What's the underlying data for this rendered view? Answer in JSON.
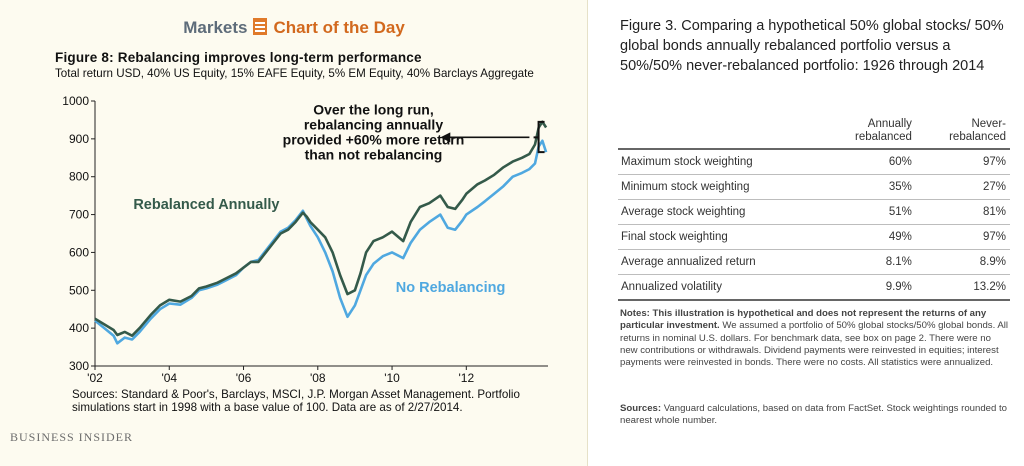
{
  "header": {
    "markets": "Markets",
    "chart_of_the_day": "Chart of the Day"
  },
  "colors": {
    "rebalanced": "#345a4a",
    "no_rebalancing": "#4fa8e0",
    "markets": "#5e6c7a",
    "accent": "#d2691e"
  },
  "chart_data": {
    "type": "line",
    "title": "Figure 8: Rebalancing improves long-term performance",
    "subtitle": "Total return USD, 40% US Equity, 15% EAFE Equity, 5% EM Equity, 40% Barclays Aggregate",
    "xlabel": "",
    "ylabel": "",
    "ylim": [
      300,
      1000
    ],
    "xlim": [
      2002.0,
      2014.2
    ],
    "yticks": [
      300,
      400,
      500,
      600,
      700,
      800,
      900,
      1000
    ],
    "xticks": [
      {
        "value": 2002,
        "label": "'02"
      },
      {
        "value": 2004,
        "label": "'04"
      },
      {
        "value": 2006,
        "label": "'06"
      },
      {
        "value": 2008,
        "label": "'08"
      },
      {
        "value": 2010,
        "label": "'10"
      },
      {
        "value": 2012,
        "label": "'12"
      }
    ],
    "grid": false,
    "legend": "inline labels",
    "series": [
      {
        "name": "Rebalanced Annually",
        "x": [
          2002.0,
          2002.25,
          2002.5,
          2002.6,
          2002.8,
          2003.0,
          2003.2,
          2003.5,
          2003.75,
          2004.0,
          2004.3,
          2004.6,
          2004.8,
          2005.0,
          2005.3,
          2005.5,
          2005.8,
          2006.0,
          2006.2,
          2006.4,
          2006.6,
          2006.8,
          2007.0,
          2007.2,
          2007.4,
          2007.6,
          2007.7,
          2007.8,
          2008.0,
          2008.2,
          2008.4,
          2008.6,
          2008.8,
          2009.0,
          2009.15,
          2009.3,
          2009.5,
          2009.75,
          2010.0,
          2010.3,
          2010.5,
          2010.75,
          2011.0,
          2011.3,
          2011.5,
          2011.7,
          2011.9,
          2012.0,
          2012.3,
          2012.5,
          2012.75,
          2013.0,
          2013.25,
          2013.5,
          2013.7,
          2013.85,
          2013.95,
          2014.05,
          2014.15
        ],
        "values": [
          425,
          410,
          395,
          382,
          390,
          380,
          400,
          435,
          460,
          475,
          470,
          485,
          505,
          510,
          520,
          530,
          545,
          560,
          575,
          575,
          600,
          625,
          650,
          660,
          680,
          705,
          695,
          680,
          660,
          640,
          600,
          540,
          490,
          500,
          545,
          600,
          630,
          640,
          655,
          630,
          680,
          720,
          730,
          750,
          720,
          715,
          740,
          755,
          780,
          790,
          805,
          825,
          840,
          850,
          860,
          885,
          930,
          945,
          930
        ]
      },
      {
        "name": "No Rebalancing",
        "x": [
          2002.0,
          2002.25,
          2002.5,
          2002.6,
          2002.8,
          2003.0,
          2003.2,
          2003.5,
          2003.75,
          2004.0,
          2004.3,
          2004.6,
          2004.8,
          2005.0,
          2005.3,
          2005.5,
          2005.8,
          2006.0,
          2006.2,
          2006.4,
          2006.6,
          2006.8,
          2007.0,
          2007.2,
          2007.4,
          2007.6,
          2007.7,
          2007.8,
          2008.0,
          2008.2,
          2008.4,
          2008.6,
          2008.8,
          2009.0,
          2009.15,
          2009.3,
          2009.5,
          2009.75,
          2010.0,
          2010.3,
          2010.5,
          2010.75,
          2011.0,
          2011.3,
          2011.5,
          2011.7,
          2011.9,
          2012.0,
          2012.3,
          2012.5,
          2012.75,
          2013.0,
          2013.25,
          2013.5,
          2013.7,
          2013.85,
          2013.95,
          2014.05,
          2014.15
        ],
        "values": [
          420,
          400,
          380,
          360,
          375,
          370,
          390,
          425,
          450,
          465,
          462,
          480,
          500,
          505,
          515,
          525,
          540,
          560,
          575,
          580,
          605,
          630,
          655,
          665,
          685,
          710,
          690,
          670,
          640,
          600,
          550,
          480,
          430,
          460,
          500,
          540,
          570,
          590,
          600,
          585,
          625,
          660,
          680,
          700,
          665,
          660,
          685,
          700,
          720,
          735,
          755,
          775,
          800,
          810,
          820,
          835,
          880,
          895,
          865
        ]
      }
    ],
    "annotations": [
      {
        "text": "Rebalanced Annually",
        "series": "Rebalanced Annually",
        "x": 2005.0,
        "y": 715
      },
      {
        "text": "No Rebalancing",
        "series": "No Rebalancing",
        "x": 2010.1,
        "y": 495
      },
      {
        "text": "Over the long run, rebalancing annually provided +60% more return than not rebalancing",
        "lines": [
          "Over the long run,",
          "rebalancing annually",
          "provided +60% more return",
          "than not rebalancing"
        ],
        "x": 2009.5,
        "y": 965
      }
    ]
  },
  "left_sources": "Sources: Standard & Poor's, Barclays, MSCI, J.P. Morgan Asset Management. Portfolio simulations start in 1998 with a base value of 100. Data are as of 2/27/2014.",
  "brand": "BUSINESS INSIDER",
  "table": {
    "caption": "Figure 3. Comparing a hypothetical 50% global stocks/ 50% global bonds annually rebalanced portfolio versus a 50%/50% never-rebalanced portfolio: 1926 through 2014",
    "col_annual_line1": "Annually",
    "col_annual_line2": "rebalanced",
    "col_never_line1": "Never-",
    "col_never_line2": "rebalanced",
    "rows": [
      {
        "label": "Maximum stock weighting",
        "annual": "60%",
        "never": "97%"
      },
      {
        "label": "Minimum stock weighting",
        "annual": "35%",
        "never": "27%"
      },
      {
        "label": "Average stock weighting",
        "annual": "51%",
        "never": "81%"
      },
      {
        "label": "Final stock weighting",
        "annual": "49%",
        "never": "97%"
      },
      {
        "label": "Average annualized return",
        "annual": "8.1%",
        "never": "8.9%"
      },
      {
        "label": "Annualized volatility",
        "annual": "9.9%",
        "never": "13.2%"
      }
    ]
  },
  "notes": {
    "bold": "Notes: This illustration is hypothetical and does not represent the returns of any particular investment.",
    "text": "We assumed a portfolio of 50% global stocks/50% global bonds. All returns in nominal U.S. dollars. For benchmark data, see box on page 2. There were no new contributions or withdrawals. Dividend payments were reinvested in equities; interest payments were reinvested in bonds. There were no costs. All statistics were annualized."
  },
  "right_sources": {
    "bold": "Sources:",
    "text": "Vanguard calculations, based on data from FactSet. Stock weightings rounded to nearest whole number."
  }
}
